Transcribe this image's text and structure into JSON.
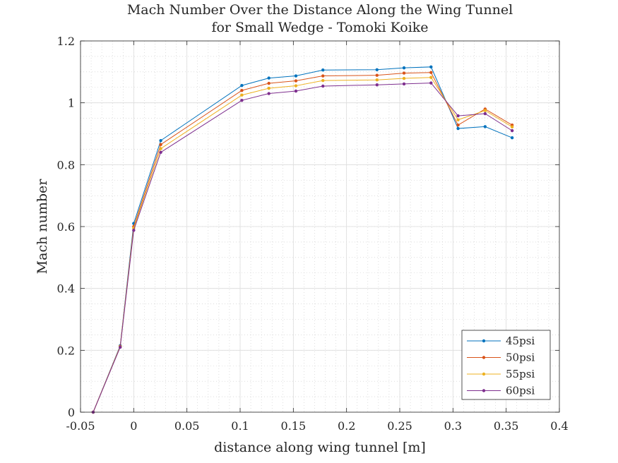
{
  "chart_data": {
    "type": "line",
    "title": [
      "Mach Number Over the Distance Along the Wing Tunnel",
      "for Small Wedge - Tomoki Koike"
    ],
    "xlabel": "distance along wing tunnel [m]",
    "ylabel": "Mach number",
    "xlim": [
      -0.05,
      0.4
    ],
    "ylim": [
      0,
      1.2
    ],
    "xticks": [
      -0.05,
      0,
      0.05,
      0.1,
      0.15,
      0.2,
      0.25,
      0.3,
      0.35,
      0.4
    ],
    "xtick_labels": [
      "-0.05",
      "0",
      "0.05",
      "0.1",
      "0.15",
      "0.2",
      "0.25",
      "0.3",
      "0.35",
      "0.4"
    ],
    "yticks": [
      0,
      0.2,
      0.4,
      0.6,
      0.8,
      1,
      1.2
    ],
    "ytick_labels": [
      "0",
      "0.2",
      "0.4",
      "0.6",
      "0.8",
      "1",
      "1.2"
    ],
    "grid": true,
    "minor_grid": true,
    "legend_position": "bottom-right",
    "x": [
      -0.0381,
      -0.0127,
      0,
      0.0254,
      0.1016,
      0.127,
      0.1524,
      0.1778,
      0.2286,
      0.254,
      0.2794,
      0.3048,
      0.3302,
      0.3556
    ],
    "series": [
      {
        "name": "45psi",
        "color": "#0072BD",
        "values": [
          0,
          0.215,
          0.61,
          0.878,
          1.056,
          1.08,
          1.087,
          1.106,
          1.107,
          1.113,
          1.116,
          0.917,
          0.923,
          0.887
        ]
      },
      {
        "name": "50psi",
        "color": "#D95319",
        "values": [
          0,
          0.213,
          0.6,
          0.865,
          1.04,
          1.063,
          1.071,
          1.087,
          1.089,
          1.096,
          1.098,
          0.928,
          0.98,
          0.928
        ]
      },
      {
        "name": "55psi",
        "color": "#EDB120",
        "values": [
          0,
          0.212,
          0.595,
          0.852,
          1.025,
          1.047,
          1.055,
          1.072,
          1.074,
          1.079,
          1.082,
          0.945,
          0.975,
          0.922
        ]
      },
      {
        "name": "60psi",
        "color": "#7E2F8E",
        "values": [
          0,
          0.21,
          0.588,
          0.84,
          1.008,
          1.03,
          1.038,
          1.054,
          1.058,
          1.061,
          1.064,
          0.958,
          0.965,
          0.91
        ]
      }
    ]
  }
}
